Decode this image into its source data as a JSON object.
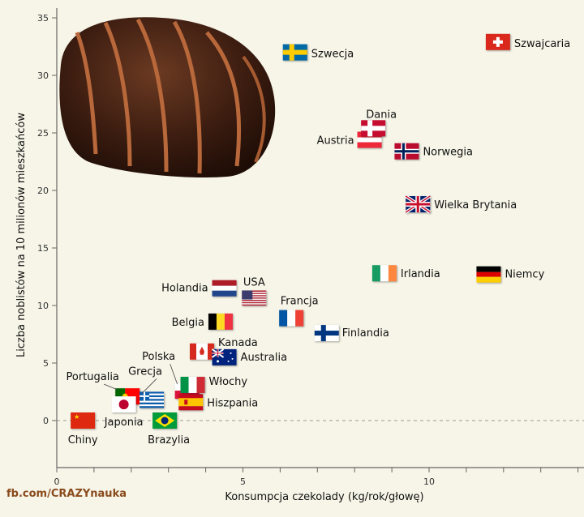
{
  "chart_data": {
    "type": "scatter",
    "title": "",
    "xlabel": "Konsumpcja czekolady (kg/rok/głowę)",
    "ylabel": "Liczba noblistów na 10 milionów mieszkańców",
    "xlim": [
      0,
      14.2
    ],
    "ylim": [
      -4,
      35
    ],
    "xticks": [
      "0",
      "5",
      "10"
    ],
    "yticks": [
      "0",
      "5",
      "10",
      "15",
      "20",
      "25",
      "30",
      "35"
    ],
    "reference_line": {
      "y": 0,
      "style": "dashed"
    },
    "points": [
      {
        "label": "Chiny",
        "code": "cn",
        "x": 0.7,
        "y": 0.0
      },
      {
        "label": "Brazylia",
        "code": "br",
        "x": 2.9,
        "y": 0.0
      },
      {
        "label": "Portugalia",
        "code": "pt",
        "x": 1.9,
        "y": 2.1
      },
      {
        "label": "Grecja",
        "code": "gr",
        "x": 2.55,
        "y": 1.8
      },
      {
        "label": "Japonia",
        "code": "jp",
        "x": 1.8,
        "y": 1.4
      },
      {
        "label": "Polska",
        "code": "pl",
        "x": 3.5,
        "y": 2.6
      },
      {
        "label": "Hiszpania",
        "code": "es",
        "x": 3.6,
        "y": 1.6
      },
      {
        "label": "Włochy",
        "code": "it",
        "x": 3.65,
        "y": 3.1
      },
      {
        "label": "Kanada",
        "code": "ca",
        "x": 3.9,
        "y": 6.0
      },
      {
        "label": "Australia",
        "code": "au",
        "x": 4.5,
        "y": 5.5
      },
      {
        "label": "Belgia",
        "code": "be",
        "x": 4.4,
        "y": 8.6
      },
      {
        "label": "Holandia",
        "code": "nl",
        "x": 4.5,
        "y": 11.5
      },
      {
        "label": "USA",
        "code": "us",
        "x": 5.3,
        "y": 10.6
      },
      {
        "label": "Francja",
        "code": "fr",
        "x": 6.3,
        "y": 8.9
      },
      {
        "label": "Finlandia",
        "code": "fi",
        "x": 7.25,
        "y": 7.6
      },
      {
        "label": "Irlandia",
        "code": "ie",
        "x": 8.8,
        "y": 12.8
      },
      {
        "label": "Niemcy",
        "code": "de",
        "x": 11.6,
        "y": 12.7
      },
      {
        "label": "Wielka Brytania",
        "code": "gb",
        "x": 9.7,
        "y": 18.8
      },
      {
        "label": "Austria",
        "code": "at",
        "x": 8.4,
        "y": 24.4
      },
      {
        "label": "Dania",
        "code": "dk",
        "x": 8.5,
        "y": 25.4
      },
      {
        "label": "Norwegia",
        "code": "no",
        "x": 9.4,
        "y": 23.4
      },
      {
        "label": "Szwecja",
        "code": "se",
        "x": 6.4,
        "y": 32.0
      },
      {
        "label": "Szwajcaria",
        "code": "ch",
        "x": 11.85,
        "y": 32.9
      }
    ]
  },
  "credit": "fb.com/CRAZYnauka"
}
